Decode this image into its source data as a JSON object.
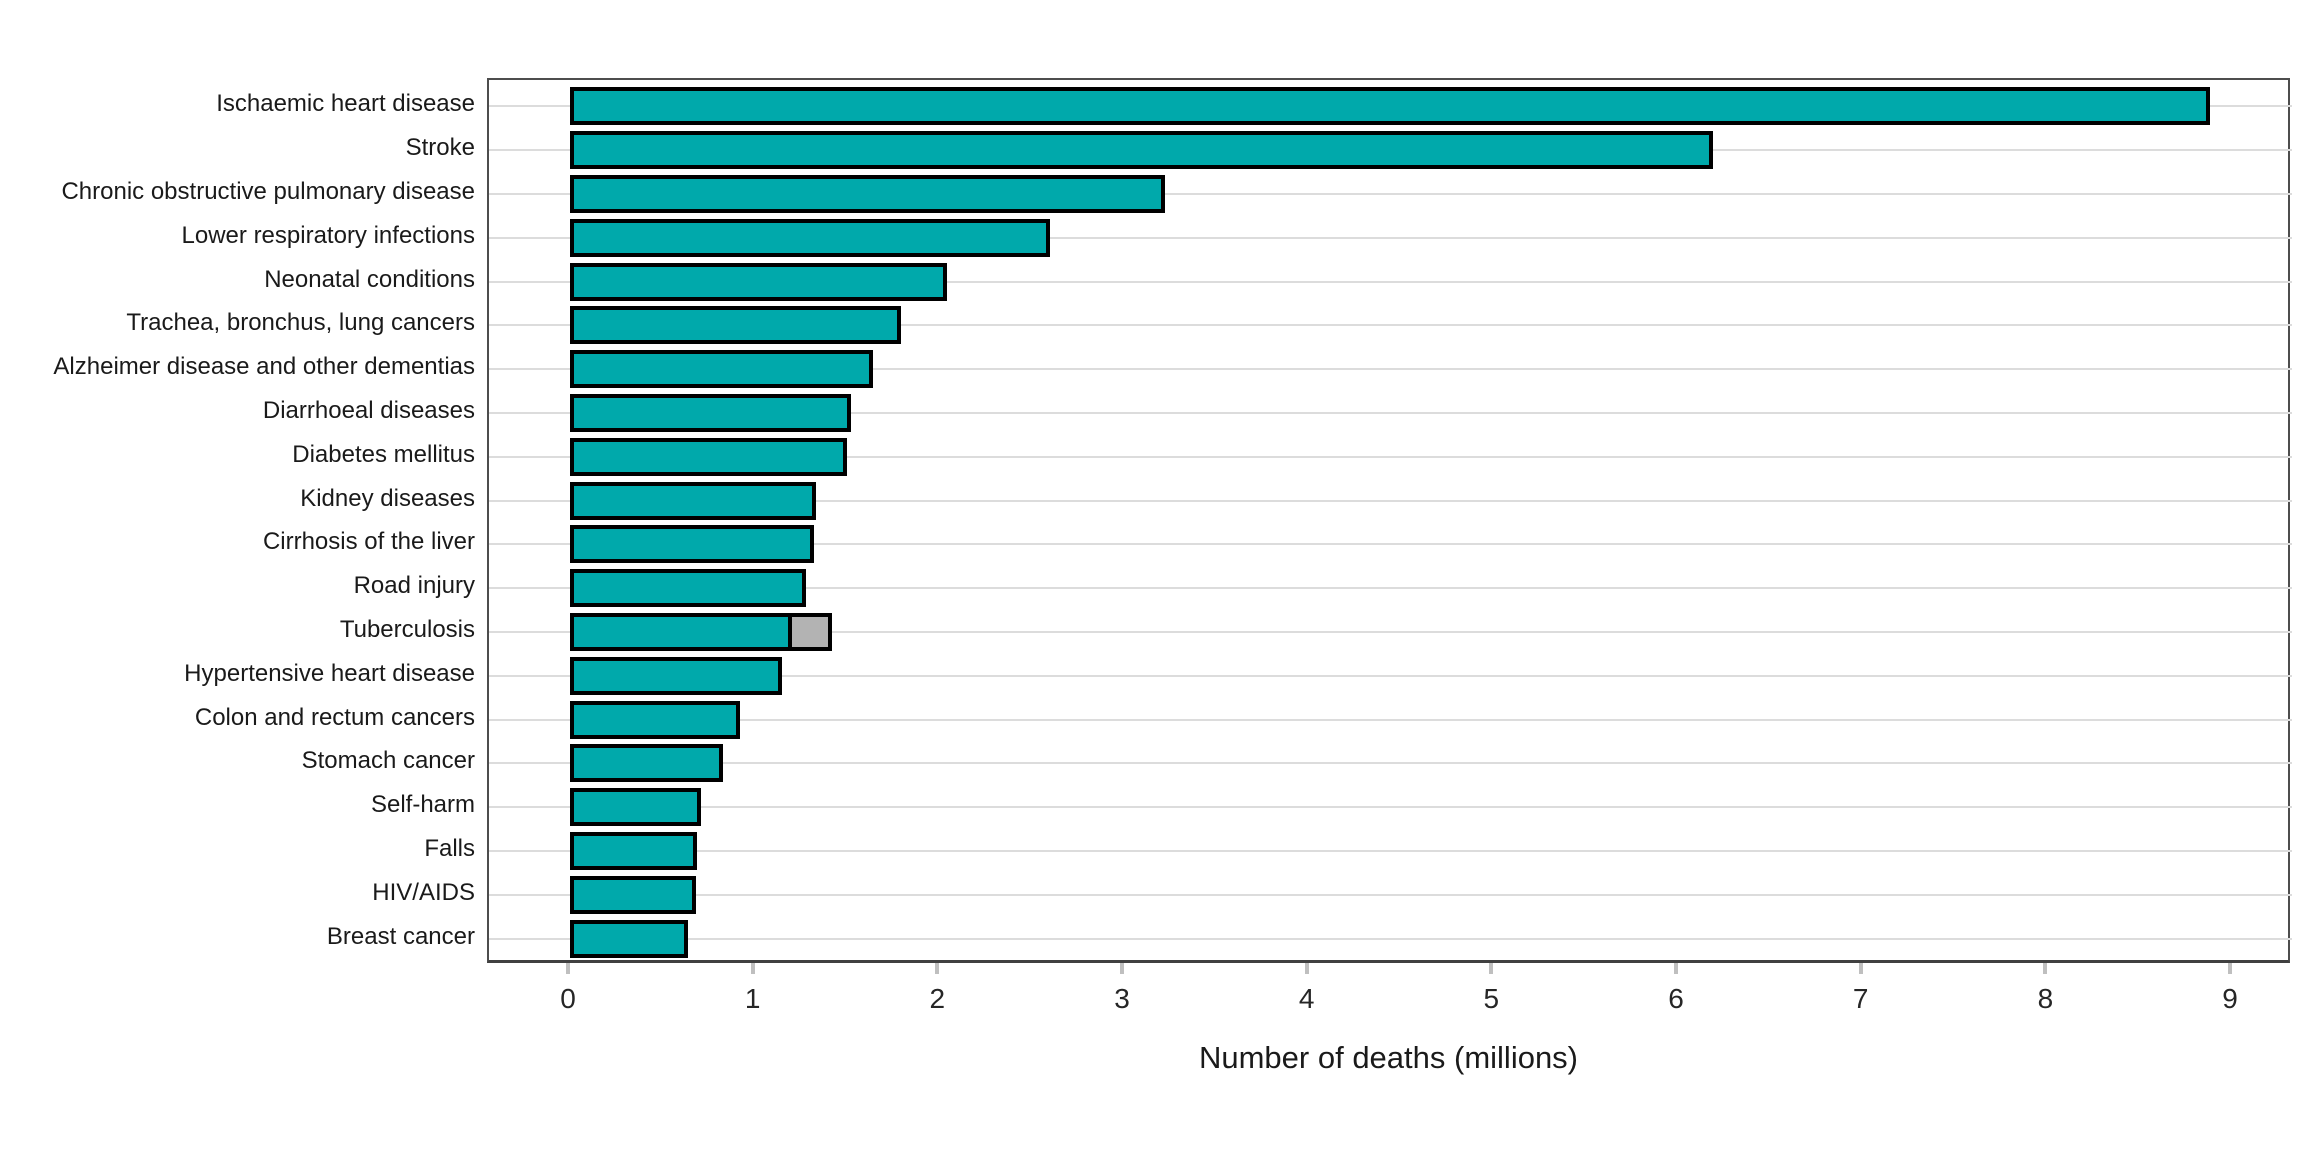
{
  "chart_data": {
    "type": "bar",
    "orientation": "horizontal",
    "title": "",
    "xlabel": "Number of deaths (millions)",
    "ylabel": "",
    "x_ticks": [
      0,
      1,
      2,
      3,
      4,
      5,
      6,
      7,
      8,
      9
    ],
    "x_range": [
      -0.44,
      9.32
    ],
    "grid": "horizontal-only",
    "legend": "none",
    "categories": [
      "Ischaemic heart disease",
      "Stroke",
      "Chronic obstructive pulmonary disease",
      "Lower respiratory infections",
      "Neonatal conditions",
      "Trachea, bronchus, lung cancers",
      "Alzheimer disease and other dementias",
      "Diarrhoeal diseases",
      "Diabetes mellitus",
      "Kidney diseases",
      "Cirrhosis of the liver",
      "Road injury",
      "Tuberculosis",
      "Hypertensive heart disease",
      "Colon and rectum cancers",
      "Stomach cancer",
      "Self-harm",
      "Falls",
      "HIV/AIDS",
      "Breast cancer"
    ],
    "values": [
      8.88,
      6.19,
      3.22,
      2.6,
      2.04,
      1.79,
      1.64,
      1.52,
      1.5,
      1.33,
      1.32,
      1.28,
      1.2,
      1.15,
      0.92,
      0.83,
      0.71,
      0.69,
      0.68,
      0.64
    ],
    "stacked_extra": {
      "category": "Tuberculosis",
      "index": 12,
      "value": 0.22,
      "color": "#b3b3b3"
    },
    "colors": {
      "bar_fill": "#00a9ab",
      "bar_stroke": "#000000",
      "gridline": "#dcdcdc",
      "tick_mark": "#bfbfbf",
      "panel_border": "#4d4d4d",
      "text": "#1a1a1a"
    }
  }
}
